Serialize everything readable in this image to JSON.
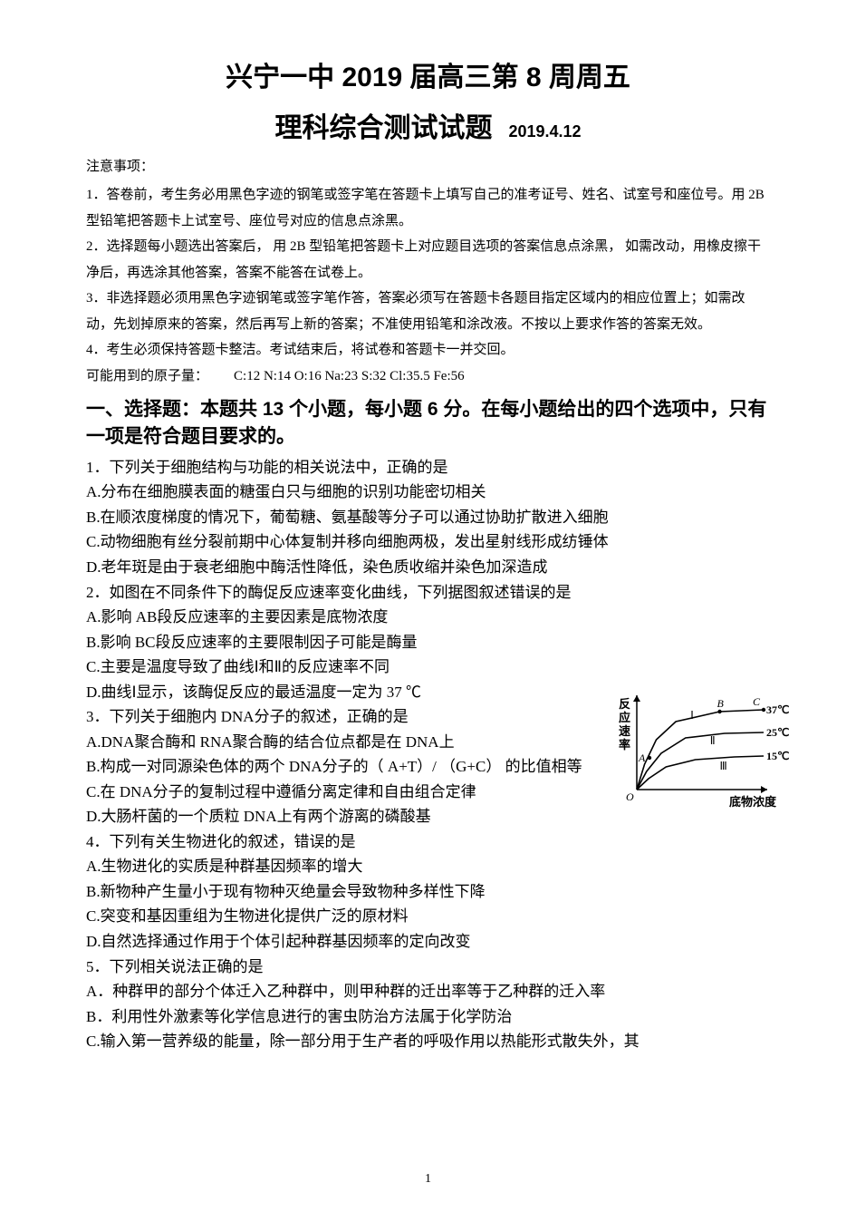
{
  "header": {
    "title_line1": "兴宁一中 2019 届高三第 8 周周五",
    "title_line2": "理科综合测试试题",
    "date": "2019.4.12"
  },
  "notices": {
    "heading": "注意事项：",
    "items": [
      "1．答卷前，考生务必用黑色字迹的钢笔或签字笔在答题卡上填写自己的准考证号、姓名、试室号和座位号。用   2B 型铅笔把答题卡上试室号、座位号对应的信息点涂黑。",
      "2．选择题每小题选出答案后，      用 2B 型铅笔把答题卡上对应题目选项的答案信息点涂黑，        如需改动，用橡皮擦干净后，再选涂其他答案，答案不能答在试卷上。",
      "3．非选择题必须用黑色字迹钢笔或签字笔作答，答案必须写在答题卡各题目指定区域内的相应位置上；如需改动，先划掉原来的答案，然后再写上新的答案；不准使用铅笔和涂改液。不按以上要求作答的答案无效。",
      "4．考生必须保持答题卡整洁。考试结束后，将试卷和答题卡一并交回。"
    ],
    "atomic_prefix": "可能用到的原子量：",
    "atomic_values": "C:12   N:14   O:16   Na:23   S:32   Cl:35.5   Fe:56"
  },
  "section1_heading": "一、选择题：本题共 13 个小题，每小题 6 分。在每小题给出的四个选项中，只有一项是符合题目要求的。",
  "q1": {
    "stem": "1．下列关于细胞结构与功能的相关说法中，正确的是",
    "A": "A.分布在细胞膜表面的糖蛋白只与细胞的识别功能密切相关",
    "B": "B.在顺浓度梯度的情况下，葡萄糖、氨基酸等分子可以通过协助扩散进入细胞",
    "C": "C.动物细胞有丝分裂前期中心体复制并移向细胞两极，发出星射线形成纺锤体",
    "D": "D.老年斑是由于衰老细胞中酶活性降低，染色质收缩并染色加深造成"
  },
  "q2": {
    "stem": "2．如图在不同条件下的酶促反应速率变化曲线，下列据图叙述错误的是",
    "A": "A.影响 AB段反应速率的主要因素是底物浓度",
    "B": "B.影响 BC段反应速率的主要限制因子可能是酶量",
    "C": "C.主要是温度导致了曲线Ⅰ和Ⅱ的反应速率不同",
    "D": "D.曲线Ⅰ显示，该酶促反应的最适温度一定为      37 ℃"
  },
  "q3": {
    "stem": "3．下列关于细胞内  DNA分子的叙述，正确的是",
    "A": "A.DNA聚合酶和 RNA聚合酶的结合位点都是在   DNA上",
    "B": "B.构成一对同源染色体的两个   DNA分子的（ A+T）/ （G+C） 的比值相等",
    "C": "C.在 DNA分子的复制过程中遵循分离定律和自由组合定律",
    "D": "D.大肠杆菌的一个质粒   DNA上有两个游离的磷酸基"
  },
  "q4": {
    "stem": "4．下列有关生物进化的叙述，错误的是",
    "A": "A.生物进化的实质是种群基因频率的增大",
    "B": "B.新物种产生量小于现有物种灭绝量会导致物种多样性下降",
    "C": "C.突变和基因重组为生物进化提供广泛的原材料",
    "D": "D.自然选择通过作用于个体引起种群基因频率的定向改变"
  },
  "q5": {
    "stem": "5．下列相关说法正确的是",
    "A": "A．种群甲的部分个体迁入乙种群中，则甲种群的迁出率等于乙种群的迁入率",
    "B": "B．利用性外激素等化学信息进行的害虫防治方法属于化学防治",
    "C": "C.输入第一营养级的能量，除一部分用于生产者的呼吸作用以热能形式散失外，其"
  },
  "chart": {
    "type": "line",
    "x_label": "底物浓度",
    "y_label": "反应速率",
    "axis_color": "#000000",
    "line_color": "#000000",
    "line_width": 1.6,
    "background_color": "#ffffff",
    "font_family": "SimSun",
    "label_fontsize": 13,
    "point_label_fontsize": 12,
    "curves": [
      {
        "name": "Ⅰ",
        "temp_label": "37℃",
        "points": [
          [
            0,
            0
          ],
          [
            8,
            28
          ],
          [
            20,
            55
          ],
          [
            40,
            75
          ],
          [
            85,
            86
          ],
          [
            130,
            88
          ]
        ],
        "label_B_at": [
          85,
          86
        ],
        "label_C_at": [
          130,
          88
        ]
      },
      {
        "name": "Ⅱ",
        "temp_label": "25℃",
        "points": [
          [
            0,
            0
          ],
          [
            10,
            20
          ],
          [
            25,
            40
          ],
          [
            50,
            57
          ],
          [
            90,
            62
          ],
          [
            130,
            63
          ]
        ]
      },
      {
        "name": "Ⅲ",
        "temp_label": "15℃",
        "points": [
          [
            0,
            0
          ],
          [
            12,
            12
          ],
          [
            30,
            25
          ],
          [
            60,
            33
          ],
          [
            100,
            36
          ],
          [
            130,
            37
          ]
        ]
      }
    ],
    "point_A": [
      13,
      35
    ],
    "origin_label": "O",
    "arrow_heads": true
  },
  "page_number": "1"
}
